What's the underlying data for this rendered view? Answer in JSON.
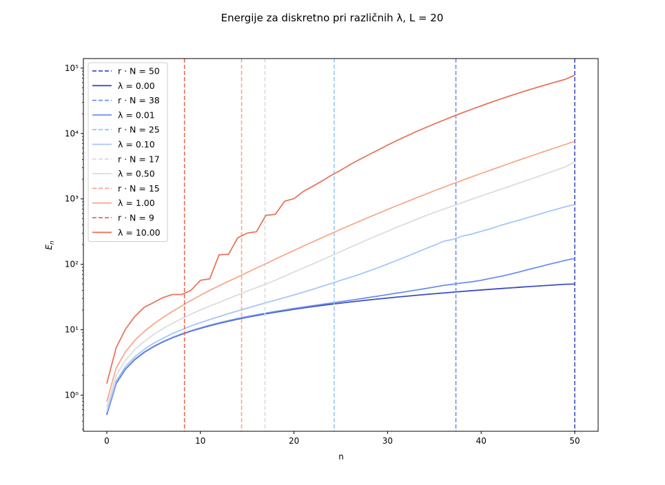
{
  "chart_data": {
    "type": "line",
    "title": "Energije za diskretno pri različnih λ, L = 20",
    "xlabel": "n",
    "ylabel": "E_n",
    "xlim": [
      -2.5,
      52.5
    ],
    "ylim": [
      0.28,
      140000
    ],
    "yscale": "log",
    "x_ticks": [
      0,
      10,
      20,
      30,
      40,
      50
    ],
    "y_ticks": [
      1,
      10,
      100,
      1000,
      10000,
      100000
    ],
    "y_tick_labels": [
      "10⁰",
      "10¹",
      "10²",
      "10³",
      "10⁴",
      "10⁵"
    ],
    "grid": false,
    "legend_position": "top-left",
    "vlines": [
      {
        "x": 50,
        "label": "r · N = 50",
        "color": "#3b4cc0"
      },
      {
        "x": 37.3,
        "label": "r · N = 38",
        "color": "#6a8fef"
      },
      {
        "x": 24.3,
        "label": "r · N = 25",
        "color": "#9ac5f5"
      },
      {
        "x": 16.9,
        "label": "r · N = 17",
        "color": "#dcdcdc"
      },
      {
        "x": 14.4,
        "label": "r · N = 15",
        "color": "#f6a989"
      },
      {
        "x": 8.3,
        "label": "r · N = 9",
        "color": "#e66a52"
      }
    ],
    "x": [
      0,
      1,
      2,
      3,
      4,
      5,
      6,
      7,
      8,
      9,
      10,
      11,
      12,
      13,
      14,
      15,
      16,
      17,
      18,
      19,
      20,
      21,
      22,
      23,
      24,
      25,
      26,
      27,
      28,
      29,
      30,
      31,
      32,
      33,
      34,
      35,
      36,
      37,
      38,
      39,
      40,
      41,
      42,
      43,
      44,
      45,
      46,
      47,
      48,
      49,
      50
    ],
    "series": [
      {
        "name": "λ = 0.00",
        "color": "#3b4cc0",
        "values": [
          0.5,
          1.5,
          2.5,
          3.5,
          4.5,
          5.5,
          6.5,
          7.5,
          8.5,
          9.5,
          10.5,
          11.5,
          12.5,
          13.5,
          14.5,
          15.5,
          16.5,
          17.5,
          18.5,
          19.5,
          20.5,
          21.5,
          22.5,
          23.5,
          24.5,
          25.5,
          26.5,
          27.5,
          28.5,
          29.5,
          30.5,
          31.5,
          32.5,
          33.5,
          34.5,
          35.5,
          36.5,
          37.5,
          38.5,
          39.5,
          40.5,
          41.5,
          42.5,
          43.5,
          44.5,
          45.5,
          46.5,
          47.5,
          48.5,
          49.5,
          50
        ]
      },
      {
        "name": "λ = 0.01",
        "color": "#6a8fef",
        "values": [
          0.51,
          1.52,
          2.53,
          3.55,
          4.56,
          5.57,
          6.58,
          7.6,
          8.62,
          9.64,
          10.66,
          11.7,
          12.73,
          13.76,
          14.8,
          15.84,
          16.88,
          17.92,
          18.97,
          20.02,
          21.1,
          22.2,
          23.3,
          24.4,
          25.6,
          26.9,
          28.2,
          29.6,
          31.1,
          32.7,
          34.4,
          36.3,
          38.2,
          40.3,
          42.5,
          45,
          47.6,
          49.6,
          52,
          54,
          57,
          61,
          65,
          70,
          76,
          83,
          90,
          98,
          106,
          115,
          123
        ]
      },
      {
        "name": "λ = 0.10",
        "color": "#a6c4fb",
        "values": [
          0.55,
          1.65,
          2.75,
          3.87,
          5,
          6.2,
          7.4,
          8.7,
          10,
          11.4,
          12.8,
          14.3,
          15.9,
          17.6,
          19.4,
          21.4,
          23.5,
          25.8,
          28.3,
          31,
          34,
          37.5,
          41.4,
          46,
          51,
          57,
          63,
          70,
          79,
          89,
          101,
          115,
          131,
          150,
          172,
          196,
          225,
          241,
          270,
          290,
          320,
          350,
          390,
          430,
          470,
          520,
          570,
          630,
          690,
          760,
          820
        ]
      },
      {
        "name": "λ = 0.50",
        "color": "#dcdcdc",
        "values": [
          0.65,
          2,
          3.4,
          5,
          6.6,
          8.4,
          10.4,
          12.5,
          14.8,
          17.3,
          20,
          23,
          26,
          30,
          34,
          39,
          44,
          50,
          57,
          66,
          76,
          88,
          101,
          117,
          135,
          157,
          182,
          210,
          243,
          280,
          320,
          370,
          420,
          480,
          550,
          620,
          700,
          780,
          880,
          990,
          1110,
          1240,
          1390,
          1550,
          1740,
          1950,
          2180,
          2450,
          2750,
          3100,
          3700
        ]
      },
      {
        "name": "λ = 1.00",
        "color": "#f7a889",
        "values": [
          0.8,
          2.6,
          4.6,
          6.9,
          9.4,
          12.2,
          15.4,
          19,
          23,
          28,
          33.5,
          40,
          47,
          55,
          64,
          75,
          88,
          102,
          120,
          140,
          163,
          190,
          220,
          256,
          296,
          342,
          395,
          455,
          525,
          600,
          690,
          790,
          900,
          1030,
          1170,
          1330,
          1510,
          1710,
          1930,
          2180,
          2450,
          2760,
          3100,
          3480,
          3900,
          4370,
          4890,
          5460,
          6100,
          6800,
          7600
        ]
      },
      {
        "name": "λ = 10.00",
        "color": "#e7745b",
        "values": [
          1.5,
          5.3,
          10.2,
          16,
          22,
          26,
          31,
          34.5,
          34.5,
          40,
          57,
          60,
          140,
          142,
          255,
          300,
          315,
          560,
          580,
          920,
          1010,
          1300,
          1560,
          1880,
          2300,
          2750,
          3350,
          4000,
          4750,
          5600,
          6650,
          7800,
          9100,
          10600,
          12200,
          14000,
          16000,
          18300,
          20800,
          23500,
          26500,
          29800,
          33400,
          37300,
          41500,
          46000,
          50800,
          56000,
          61500,
          67500,
          78000
        ]
      }
    ],
    "legend": [
      {
        "label": "r · N = 50",
        "color": "#3b4cc0",
        "style": "dashed"
      },
      {
        "label": "λ = 0.00",
        "color": "#3b4cc0",
        "style": "solid"
      },
      {
        "label": "r · N = 38",
        "color": "#6a8fef",
        "style": "dashed"
      },
      {
        "label": "λ = 0.01",
        "color": "#6a8fef",
        "style": "solid"
      },
      {
        "label": "r · N = 25",
        "color": "#9ac5f5",
        "style": "dashed"
      },
      {
        "label": "λ = 0.10",
        "color": "#a6c4fb",
        "style": "solid"
      },
      {
        "label": "r · N = 17",
        "color": "#dcdcdc",
        "style": "dashed"
      },
      {
        "label": "λ = 0.50",
        "color": "#dcdcdc",
        "style": "solid"
      },
      {
        "label": "r · N = 15",
        "color": "#f6a989",
        "style": "dashed"
      },
      {
        "label": "λ = 1.00",
        "color": "#f7a889",
        "style": "solid"
      },
      {
        "label": "r · N = 9",
        "color": "#e66a52",
        "style": "dashed"
      },
      {
        "label": "λ = 10.00",
        "color": "#e7745b",
        "style": "solid"
      }
    ]
  }
}
